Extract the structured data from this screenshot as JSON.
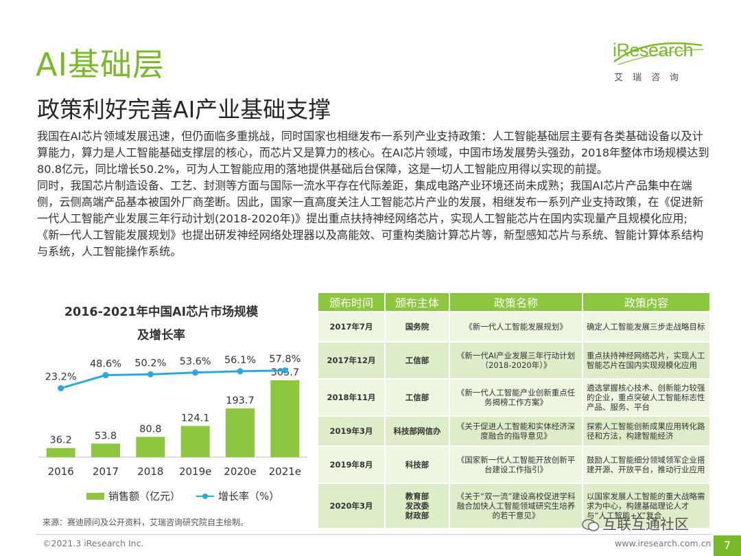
{
  "slide": {
    "title": "AI基础层",
    "subtitle": "政策利好完善AI产业基础支撑",
    "logo": {
      "wordmark": "iResearch",
      "cn": "艾瑞咨询"
    },
    "body_paragraphs": [
      "我国在AI芯片领域发展迅速，但仍面临多重挑战，同时国家也相继发布一系列产业支持政策：人工智能基础层主要有各类基础设备以及计算能力，算力是人工智能基础支撑层的核心，而芯片又是算力的核心。在AI芯片领域，中国市场发展势头强劲，2018年整体市场规模达到80.8亿元，同比增长50.2%，可为人工智能应用的落地提供基础后台保障，这是一切人工智能应用得以实现的前提。",
      "同时，我国芯片制造设备、工艺、封测等方面与国际一流水平存在代际差距，集成电路产业环境还尚未成熟；我国AI芯片产品集中在端侧，云侧高端产品基本被国外厂商垄断。因此，国家一直高度关注人工智能芯片产业的发展，相继发布一系列产业支持政策，在《促进新一代人工智能产业发展三年行动计划(2018-2020年)》提出重点扶持神经网络芯片，实现人工智能芯片在国内实现量产且规模化应用;《新一代人工智能发展规划》也提出研发神经网络处理器以及高能效、可重构类脑计算芯片等，新型感知芯片与系统、智能计算体系结构与系统，人工智能操作系统。"
    ],
    "source": "来源：赛迪顾问及公开资料，艾瑞咨询研究院自主绘制。",
    "copyright": "©2021.3 iResearch Inc.",
    "website": "www.iresearch.com.cn",
    "page_number": "7",
    "watermark": "互联互通社区",
    "colors": {
      "brand_green": "#7ab929",
      "bar_green": "#8dc63f",
      "line_blue": "#29a8e0"
    }
  },
  "chart_data": {
    "type": "bar",
    "title_lines": [
      "2016-2021年中国AI芯片市场规模",
      "及增长率"
    ],
    "categories": [
      "2016",
      "2017",
      "2018",
      "2019e",
      "2020e",
      "2021e"
    ],
    "series": [
      {
        "name": "销售额（亿元）",
        "type": "bar",
        "values": [
          36.2,
          53.8,
          80.8,
          124.1,
          193.7,
          305.7
        ],
        "labels": [
          "36.2",
          "53.8",
          "80.8",
          "124.1",
          "193.7",
          "305.7"
        ]
      },
      {
        "name": "增长率（%）",
        "type": "line",
        "values": [
          23.2,
          48.6,
          50.2,
          53.6,
          56.1,
          57.8
        ],
        "labels": [
          "23.2%",
          "48.6%",
          "50.2%",
          "53.6%",
          "56.1%",
          "57.8%"
        ]
      }
    ],
    "legend_position": "bottom",
    "grid": false
  },
  "policy_table": {
    "headers": [
      "颁布时间",
      "颁布主体",
      "政策名称",
      "政策内容"
    ],
    "rows": [
      {
        "time": "2017年7月",
        "issuer": "国务院",
        "name": "《新一代人工智能发展规划》",
        "content": "确定人工智能发展三步走战略目标"
      },
      {
        "time": "2017年12月",
        "issuer": "工信部",
        "name": "《新一代AI产业发展三年行动计划（2018-2020年）》",
        "content": "重点扶持神经网络芯片，实现人工智能芯片在国内实现规模化应用"
      },
      {
        "time": "2018年11月",
        "issuer": "工信部",
        "name": "《新一代人工智能产业创新重点任务揭榜工作方案》",
        "content": "遴选掌握核心技术、创新能力较强的企业，重点突破人工智能标志性产品、服务、平台"
      },
      {
        "time": "2019年3月",
        "issuer": "科技部网信办",
        "name": "《关于促进人工智能和实体经济深度融合的指导意见》",
        "content": "探索人工智能创新成果应用转化路径和方法，构建智能经济"
      },
      {
        "time": "2019年8月",
        "issuer": "科技部",
        "name": "《国家新一代人工智能开放创新平台建设工作指引》",
        "content": "鼓励人工智能细分领域领军企业搭建开源、开放平台，推动行业应用"
      },
      {
        "time": "2020年3月",
        "issuer": "教育部\n发改委\n财政部",
        "name": "《关于“双一流”建设高校促进学科融合加快人工智能领域研究生培养的若干意见》",
        "content": "以国家发展人工智能的重大战略需求为中心，构建基础理论人才与“人工智能+X”复合"
      }
    ]
  }
}
